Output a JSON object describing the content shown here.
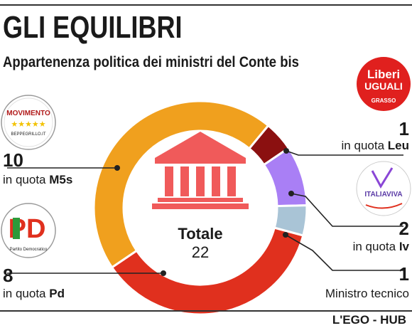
{
  "header": {
    "title": "GLI EQUILIBRI",
    "subtitle": "Appartenenza politica dei ministri del Conte bis"
  },
  "credit": "L'EGO - HUB",
  "chart_data": {
    "type": "pie",
    "total_label": "Totale",
    "total_value": "22",
    "series": [
      {
        "key": "m5s",
        "value": 10,
        "count_label": "10",
        "prefix": "in quota ",
        "party": "M5s",
        "color": "#f0a01e"
      },
      {
        "key": "leu",
        "value": 1,
        "count_label": "1",
        "prefix": "in quota ",
        "party": "Leu",
        "color": "#8b1010"
      },
      {
        "key": "iv",
        "value": 2,
        "count_label": "2",
        "prefix": "in quota ",
        "party": "Iv",
        "color": "#a97ff5"
      },
      {
        "key": "tec",
        "value": 1,
        "count_label": "1",
        "prefix": "",
        "party": "Ministro tecnico",
        "color": "#a9c4d6"
      },
      {
        "key": "pd",
        "value": 8,
        "count_label": "8",
        "prefix": "in quota ",
        "party": "Pd",
        "color": "#e0301e"
      }
    ]
  },
  "logos": {
    "m5s": {
      "line1": "MOVIMENTO",
      "stars": "★★★★★",
      "line2": "BEPPEGRILLO.IT"
    },
    "pd": {
      "mark": "PD",
      "line": "Partito Democratico"
    },
    "leu": {
      "line1": "Liberi",
      "line2": "UGUALI",
      "line3": "GRASSO"
    },
    "iv": {
      "text": "ITALIAVIVA"
    }
  }
}
